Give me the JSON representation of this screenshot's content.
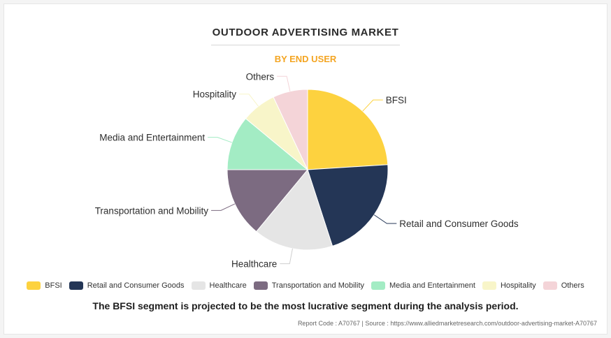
{
  "title": "OUTDOOR ADVERTISING MARKET",
  "subtitle": "BY END USER",
  "chart_data": {
    "type": "pie",
    "title": "OUTDOOR ADVERTISING MARKET",
    "subtitle": "BY END USER",
    "categories": [
      "BFSI",
      "Retail and Consumer Goods",
      "Healthcare",
      "Transportation and Mobility",
      "Media and Entertainment",
      "Hospitality",
      "Others"
    ],
    "values": [
      24,
      21,
      16,
      14,
      11,
      7,
      7
    ],
    "colors": [
      "#fdd23f",
      "#243656",
      "#e5e5e5",
      "#7c6b81",
      "#a3ecc4",
      "#f8f5c9",
      "#f4d4d8"
    ],
    "legend": "bottom"
  },
  "takeaway": "The BFSI segment is projected to be the most lucrative segment during the analysis period.",
  "footer": "Report Code : A70767  |  Source : https://www.alliedmarketresearch.com/outdoor-advertising-market-A70767"
}
